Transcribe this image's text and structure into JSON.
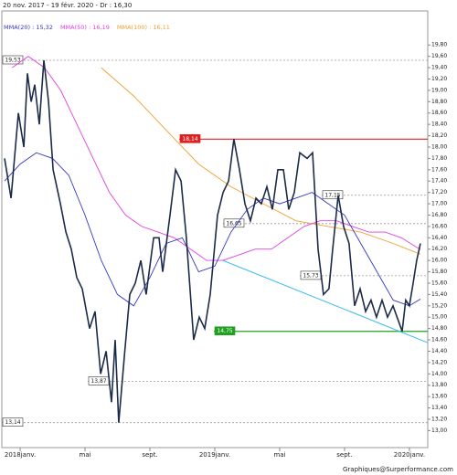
{
  "chart_data": {
    "type": "line",
    "title": "20 nov. 2017 - 19 févr. 2020 - Dr : 16,30",
    "footer": "Graphiques@Surperformance.com",
    "xlim": [
      -1.13,
      25.13
    ],
    "ylim": [
      12.7,
      20.4
    ],
    "xticks": [
      {
        "value": 0,
        "label": "2018janv."
      },
      {
        "value": 4,
        "label": "mai"
      },
      {
        "value": 8,
        "label": "sept."
      },
      {
        "value": 12,
        "label": "2019janv."
      },
      {
        "value": 16,
        "label": "mai"
      },
      {
        "value": 20,
        "label": "sept."
      },
      {
        "value": 24,
        "label": "2020janv."
      }
    ],
    "yticks": [
      {
        "value": 19.8,
        "label": "19,80"
      },
      {
        "value": 19.6,
        "label": "19,60"
      },
      {
        "value": 19.4,
        "label": "19,40"
      },
      {
        "value": 19.2,
        "label": "19,20"
      },
      {
        "value": 19.0,
        "label": "19,00"
      },
      {
        "value": 18.8,
        "label": "18,80"
      },
      {
        "value": 18.6,
        "label": "18,60"
      },
      {
        "value": 18.4,
        "label": "18,40"
      },
      {
        "value": 18.2,
        "label": "18,20"
      },
      {
        "value": 18.0,
        "label": "18,00"
      },
      {
        "value": 17.8,
        "label": "17,80"
      },
      {
        "value": 17.6,
        "label": "17,60"
      },
      {
        "value": 17.4,
        "label": "17,40"
      },
      {
        "value": 17.2,
        "label": "17,20"
      },
      {
        "value": 17.0,
        "label": "17,00"
      },
      {
        "value": 16.8,
        "label": "16,80"
      },
      {
        "value": 16.6,
        "label": "16,60"
      },
      {
        "value": 16.4,
        "label": "16,40"
      },
      {
        "value": 16.2,
        "label": "16,20"
      },
      {
        "value": 16.0,
        "label": "16,00"
      },
      {
        "value": 15.8,
        "label": "15,80"
      },
      {
        "value": 15.6,
        "label": "15,60"
      },
      {
        "value": 15.4,
        "label": "15,40"
      },
      {
        "value": 15.2,
        "label": "15,20"
      },
      {
        "value": 15.0,
        "label": "15,00"
      },
      {
        "value": 14.8,
        "label": "14,80"
      },
      {
        "value": 14.6,
        "label": "14,60"
      },
      {
        "value": 14.4,
        "label": "14,40"
      },
      {
        "value": 14.2,
        "label": "14,20"
      },
      {
        "value": 14.0,
        "label": "14,00"
      },
      {
        "value": 13.8,
        "label": "13,80"
      },
      {
        "value": 13.6,
        "label": "13,60"
      },
      {
        "value": 13.4,
        "label": "13,40"
      },
      {
        "value": 13.2,
        "label": "13,20"
      },
      {
        "value": 13.0,
        "label": "13,00"
      }
    ],
    "series": [
      {
        "color": "#1c2b4a",
        "x": [
          -0.96,
          -0.56,
          -0.11,
          0.23,
          0.45,
          0.68,
          0.9,
          1.18,
          1.46,
          1.75,
          2.03,
          2.48,
          2.82,
          3.15,
          3.49,
          3.83,
          4.28,
          4.62,
          4.96,
          5.3,
          5.63,
          5.86,
          6.08,
          6.42,
          6.76,
          7.1,
          7.44,
          7.77,
          8.23,
          8.56,
          8.79,
          9.24,
          9.58,
          9.92,
          10.25,
          10.7,
          11.04,
          11.38,
          11.72,
          12.17,
          12.51,
          12.85,
          13.18,
          13.52,
          13.86,
          14.2,
          14.54,
          14.87,
          15.21,
          15.55,
          15.89,
          16.23,
          16.56,
          16.9,
          17.24,
          17.69,
          18.03,
          18.37,
          18.7,
          19.04,
          19.27,
          19.61,
          19.94,
          20.28,
          20.62,
          20.96,
          21.3,
          21.63,
          21.97,
          22.31,
          22.65,
          22.99,
          23.55,
          23.77,
          24.0,
          24.23,
          24.45,
          24.68
        ],
        "values": [
          17.8,
          17.1,
          18.6,
          18.0,
          19.3,
          18.8,
          19.1,
          18.4,
          19.53,
          18.8,
          17.6,
          17.0,
          16.5,
          16.2,
          15.7,
          15.5,
          14.8,
          15.1,
          14.0,
          14.4,
          13.5,
          14.6,
          13.14,
          14.3,
          15.4,
          15.6,
          16.0,
          15.4,
          16.4,
          16.4,
          15.8,
          16.8,
          17.6,
          17.4,
          16.4,
          14.6,
          15.0,
          14.8,
          15.4,
          16.8,
          17.2,
          17.4,
          18.14,
          17.6,
          17.0,
          16.7,
          17.1,
          17.0,
          17.3,
          16.9,
          17.6,
          17.6,
          16.9,
          17.2,
          17.9,
          17.8,
          17.9,
          16.2,
          15.4,
          15.5,
          16.2,
          17.15,
          16.6,
          16.3,
          15.2,
          15.5,
          15.1,
          15.3,
          15.0,
          15.3,
          15.0,
          15.2,
          14.75,
          15.3,
          15.2,
          15.6,
          16.0,
          16.3
        ]
      },
      {
        "name": "MMA(20) : 15,32",
        "color": "#3535c8",
        "x": [
          -0.96,
          0,
          1,
          2,
          3,
          4,
          5,
          6,
          7,
          8,
          9,
          10,
          11,
          12,
          13,
          14,
          15,
          16,
          17,
          18,
          19,
          20,
          21,
          22,
          23,
          24,
          24.68
        ],
        "values": [
          17.4,
          17.7,
          17.9,
          17.8,
          17.5,
          16.8,
          16.0,
          15.4,
          15.2,
          15.7,
          16.3,
          16.4,
          15.8,
          15.9,
          16.5,
          16.9,
          17.1,
          17.0,
          17.1,
          17.2,
          17.0,
          16.8,
          16.3,
          15.8,
          15.3,
          15.2,
          15.32
        ]
      },
      {
        "name": "MMA(50) : 16,19",
        "color": "#e040e0",
        "x": [
          -0.5,
          0.5,
          1.5,
          2.5,
          3.5,
          4.5,
          5.5,
          6.5,
          7.5,
          8.5,
          9.5,
          10.5,
          11.5,
          12.5,
          13.5,
          14.5,
          15.5,
          16.5,
          17.5,
          18.5,
          19.5,
          20.5,
          21.5,
          22.5,
          23.5,
          24.68
        ],
        "values": [
          19.4,
          19.6,
          19.4,
          19.0,
          18.4,
          17.8,
          17.2,
          16.8,
          16.6,
          16.5,
          16.4,
          16.2,
          16.0,
          16.0,
          16.1,
          16.2,
          16.2,
          16.4,
          16.6,
          16.7,
          16.7,
          16.6,
          16.5,
          16.5,
          16.4,
          16.19
        ]
      },
      {
        "name": "MMA(100) : 16,11",
        "color": "#f0a030",
        "x": [
          5,
          7,
          9,
          11,
          13,
          15,
          17,
          19,
          21,
          23,
          24.68
        ],
        "values": [
          19.4,
          18.9,
          18.3,
          17.7,
          17.3,
          17.0,
          16.7,
          16.6,
          16.5,
          16.3,
          16.11
        ]
      }
    ],
    "trendline": {
      "color": "#33bbee",
      "x": [
        12.5,
        25.13
      ],
      "values": [
        16.0,
        14.55
      ]
    },
    "levels": [
      {
        "value": 19.53,
        "label": "19,53",
        "color": "#999999"
      },
      {
        "value": 18.14,
        "label": "18,14",
        "color": "#e02020"
      },
      {
        "value": 17.15,
        "label": "17,15",
        "color": "#999999"
      },
      {
        "value": 16.65,
        "label": "16,65",
        "color": "#999999"
      },
      {
        "value": 15.73,
        "label": "15,73",
        "color": "#999999"
      },
      {
        "value": 14.75,
        "label": "14,75",
        "color": "#20a020"
      },
      {
        "value": 13.87,
        "label": "13,87",
        "color": "#999999"
      },
      {
        "value": 13.14,
        "label": "13,14",
        "color": "#999999"
      }
    ]
  }
}
